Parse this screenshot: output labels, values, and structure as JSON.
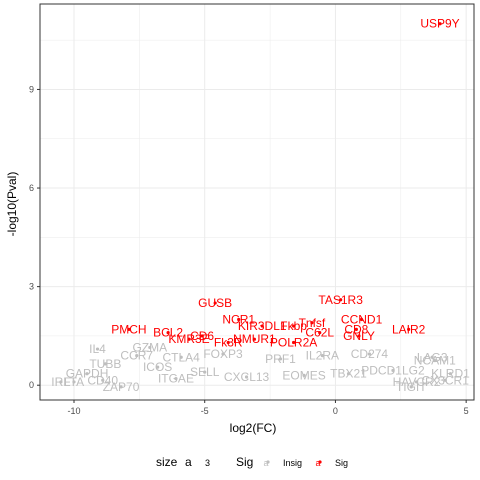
{
  "chart_data": {
    "type": "scatter",
    "title": "",
    "xlabel": "log2(FC)",
    "ylabel": "-log10(Pval)",
    "xlim": [
      -11.3,
      5.3
    ],
    "ylim": [
      -0.45,
      11.6
    ],
    "x_ticks": [
      -10,
      -5,
      0,
      5
    ],
    "y_ticks": [
      0,
      3,
      6,
      9
    ],
    "grid": true,
    "legend": {
      "position": "bottom",
      "size_title": "size",
      "size_key": "a",
      "size_value": "3",
      "color_title": "Sig",
      "color_key": "a",
      "entries": [
        {
          "name": "Insig",
          "color": "#bebebe"
        },
        {
          "name": "Sig",
          "color": "#ff0000"
        }
      ]
    },
    "colors": {
      "sig": "#ff0000",
      "insig": "#bebebe",
      "grid": "#ebebeb",
      "panel_border": "#333333"
    },
    "sig_points": [
      {
        "label": "USP9Y",
        "x": 4.0,
        "y": 11.0
      },
      {
        "label": "GUSB",
        "x": -4.6,
        "y": 2.5
      },
      {
        "label": "TAS1R3",
        "x": 0.2,
        "y": 2.6
      },
      {
        "label": "NCR1",
        "x": -3.7,
        "y": 2.0
      },
      {
        "label": "Tnfsf",
        "x": -0.9,
        "y": 1.9
      },
      {
        "label": "CCND1",
        "x": 1.0,
        "y": 2.0
      },
      {
        "label": "KIR3DL1",
        "x": -2.8,
        "y": 1.8
      },
      {
        "label": "Fkbp",
        "x": -1.6,
        "y": 1.8
      },
      {
        "label": "PMCH",
        "x": -7.9,
        "y": 1.7
      },
      {
        "label": "BCL2",
        "x": -6.4,
        "y": 1.6
      },
      {
        "label": "LAIR2",
        "x": 2.8,
        "y": 1.7
      },
      {
        "label": "C62L",
        "x": -0.6,
        "y": 1.6
      },
      {
        "label": "CD8",
        "x": 0.8,
        "y": 1.7
      },
      {
        "label": "GNLY",
        "x": 0.9,
        "y": 1.5
      },
      {
        "label": "CD6",
        "x": -5.1,
        "y": 1.5
      },
      {
        "label": "KMR3E",
        "x": -5.6,
        "y": 1.4
      },
      {
        "label": "POLR2A",
        "x": -1.6,
        "y": 1.3
      },
      {
        "label": "NMUR1",
        "x": -3.1,
        "y": 1.4
      },
      {
        "label": "Fk3R",
        "x": -4.1,
        "y": 1.3
      }
    ],
    "insig_points": [
      {
        "label": "IL4",
        "x": -9.1,
        "y": 1.1
      },
      {
        "label": "LTA",
        "x": -10.0,
        "y": 0.1
      },
      {
        "label": "IRF",
        "x": -10.5,
        "y": 0.1
      },
      {
        "label": "GAPDH",
        "x": -9.5,
        "y": 0.35
      },
      {
        "label": "TUBB",
        "x": -8.8,
        "y": 0.65
      },
      {
        "label": "CD40",
        "x": -8.9,
        "y": 0.15
      },
      {
        "label": "ZAP70",
        "x": -8.2,
        "y": -0.05
      },
      {
        "label": "CCR7",
        "x": -7.6,
        "y": 0.9
      },
      {
        "label": "GZMA",
        "x": -7.1,
        "y": 1.15
      },
      {
        "label": "ICOS",
        "x": -6.8,
        "y": 0.55
      },
      {
        "label": "CTLA4",
        "x": -5.9,
        "y": 0.85
      },
      {
        "label": "FOXP3",
        "x": -4.3,
        "y": 0.95
      },
      {
        "label": "PRF1",
        "x": -2.1,
        "y": 0.8
      },
      {
        "label": "IL2RA",
        "x": -0.5,
        "y": 0.9
      },
      {
        "label": "CD274",
        "x": 1.3,
        "y": 0.95
      },
      {
        "label": "LAG3",
        "x": 3.7,
        "y": 0.85
      },
      {
        "label": "HAVCR2",
        "x": 3.1,
        "y": 0.1
      },
      {
        "label": "TIGIT",
        "x": 2.9,
        "y": -0.05
      },
      {
        "label": "CX3CR1",
        "x": 4.2,
        "y": 0.15
      },
      {
        "label": "KLRD1",
        "x": 4.4,
        "y": 0.35
      },
      {
        "label": "NCAM1",
        "x": 3.8,
        "y": 0.75
      },
      {
        "label": "PDCD1LG2",
        "x": 2.2,
        "y": 0.45
      },
      {
        "label": "TBX21",
        "x": 0.5,
        "y": 0.35
      },
      {
        "label": "EOMES",
        "x": -1.2,
        "y": 0.3
      },
      {
        "label": "CXCL13",
        "x": -3.4,
        "y": 0.25
      },
      {
        "label": "SELL",
        "x": -5.0,
        "y": 0.4
      },
      {
        "label": "ITGAE",
        "x": -6.1,
        "y": 0.2
      }
    ]
  }
}
